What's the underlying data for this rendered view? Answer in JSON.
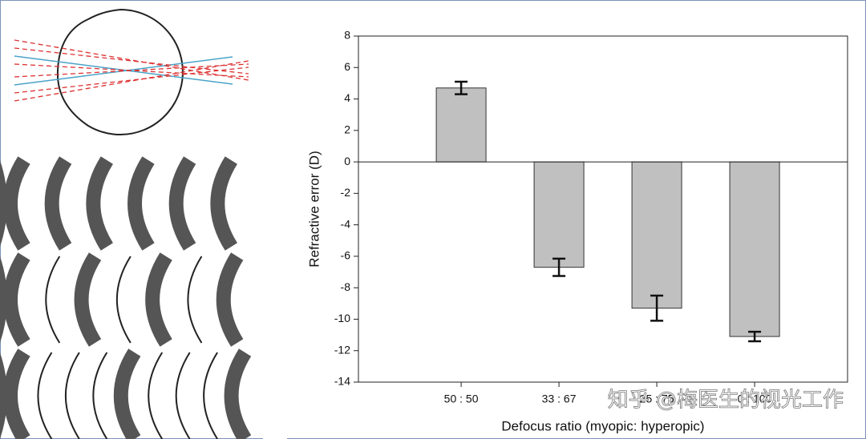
{
  "chart_data": {
    "type": "bar",
    "categories": [
      "50 : 50",
      "33 : 67",
      "25 : 75",
      "0 : 100"
    ],
    "values": [
      4.7,
      -6.7,
      -9.3,
      -11.1
    ],
    "errors": [
      0.4,
      0.55,
      0.8,
      0.3
    ],
    "color": "#c0c0c0",
    "ylim": [
      -14,
      8
    ],
    "yticks": [
      -14,
      -12,
      -10,
      -8,
      -6,
      -4,
      -2,
      0,
      2,
      4,
      6,
      8
    ],
    "y_label": "Refractive error (D)",
    "x_label": "Defocus ratio (myopic: hyperopic)",
    "watermark": "知乎 @梅医生的视光工作"
  }
}
